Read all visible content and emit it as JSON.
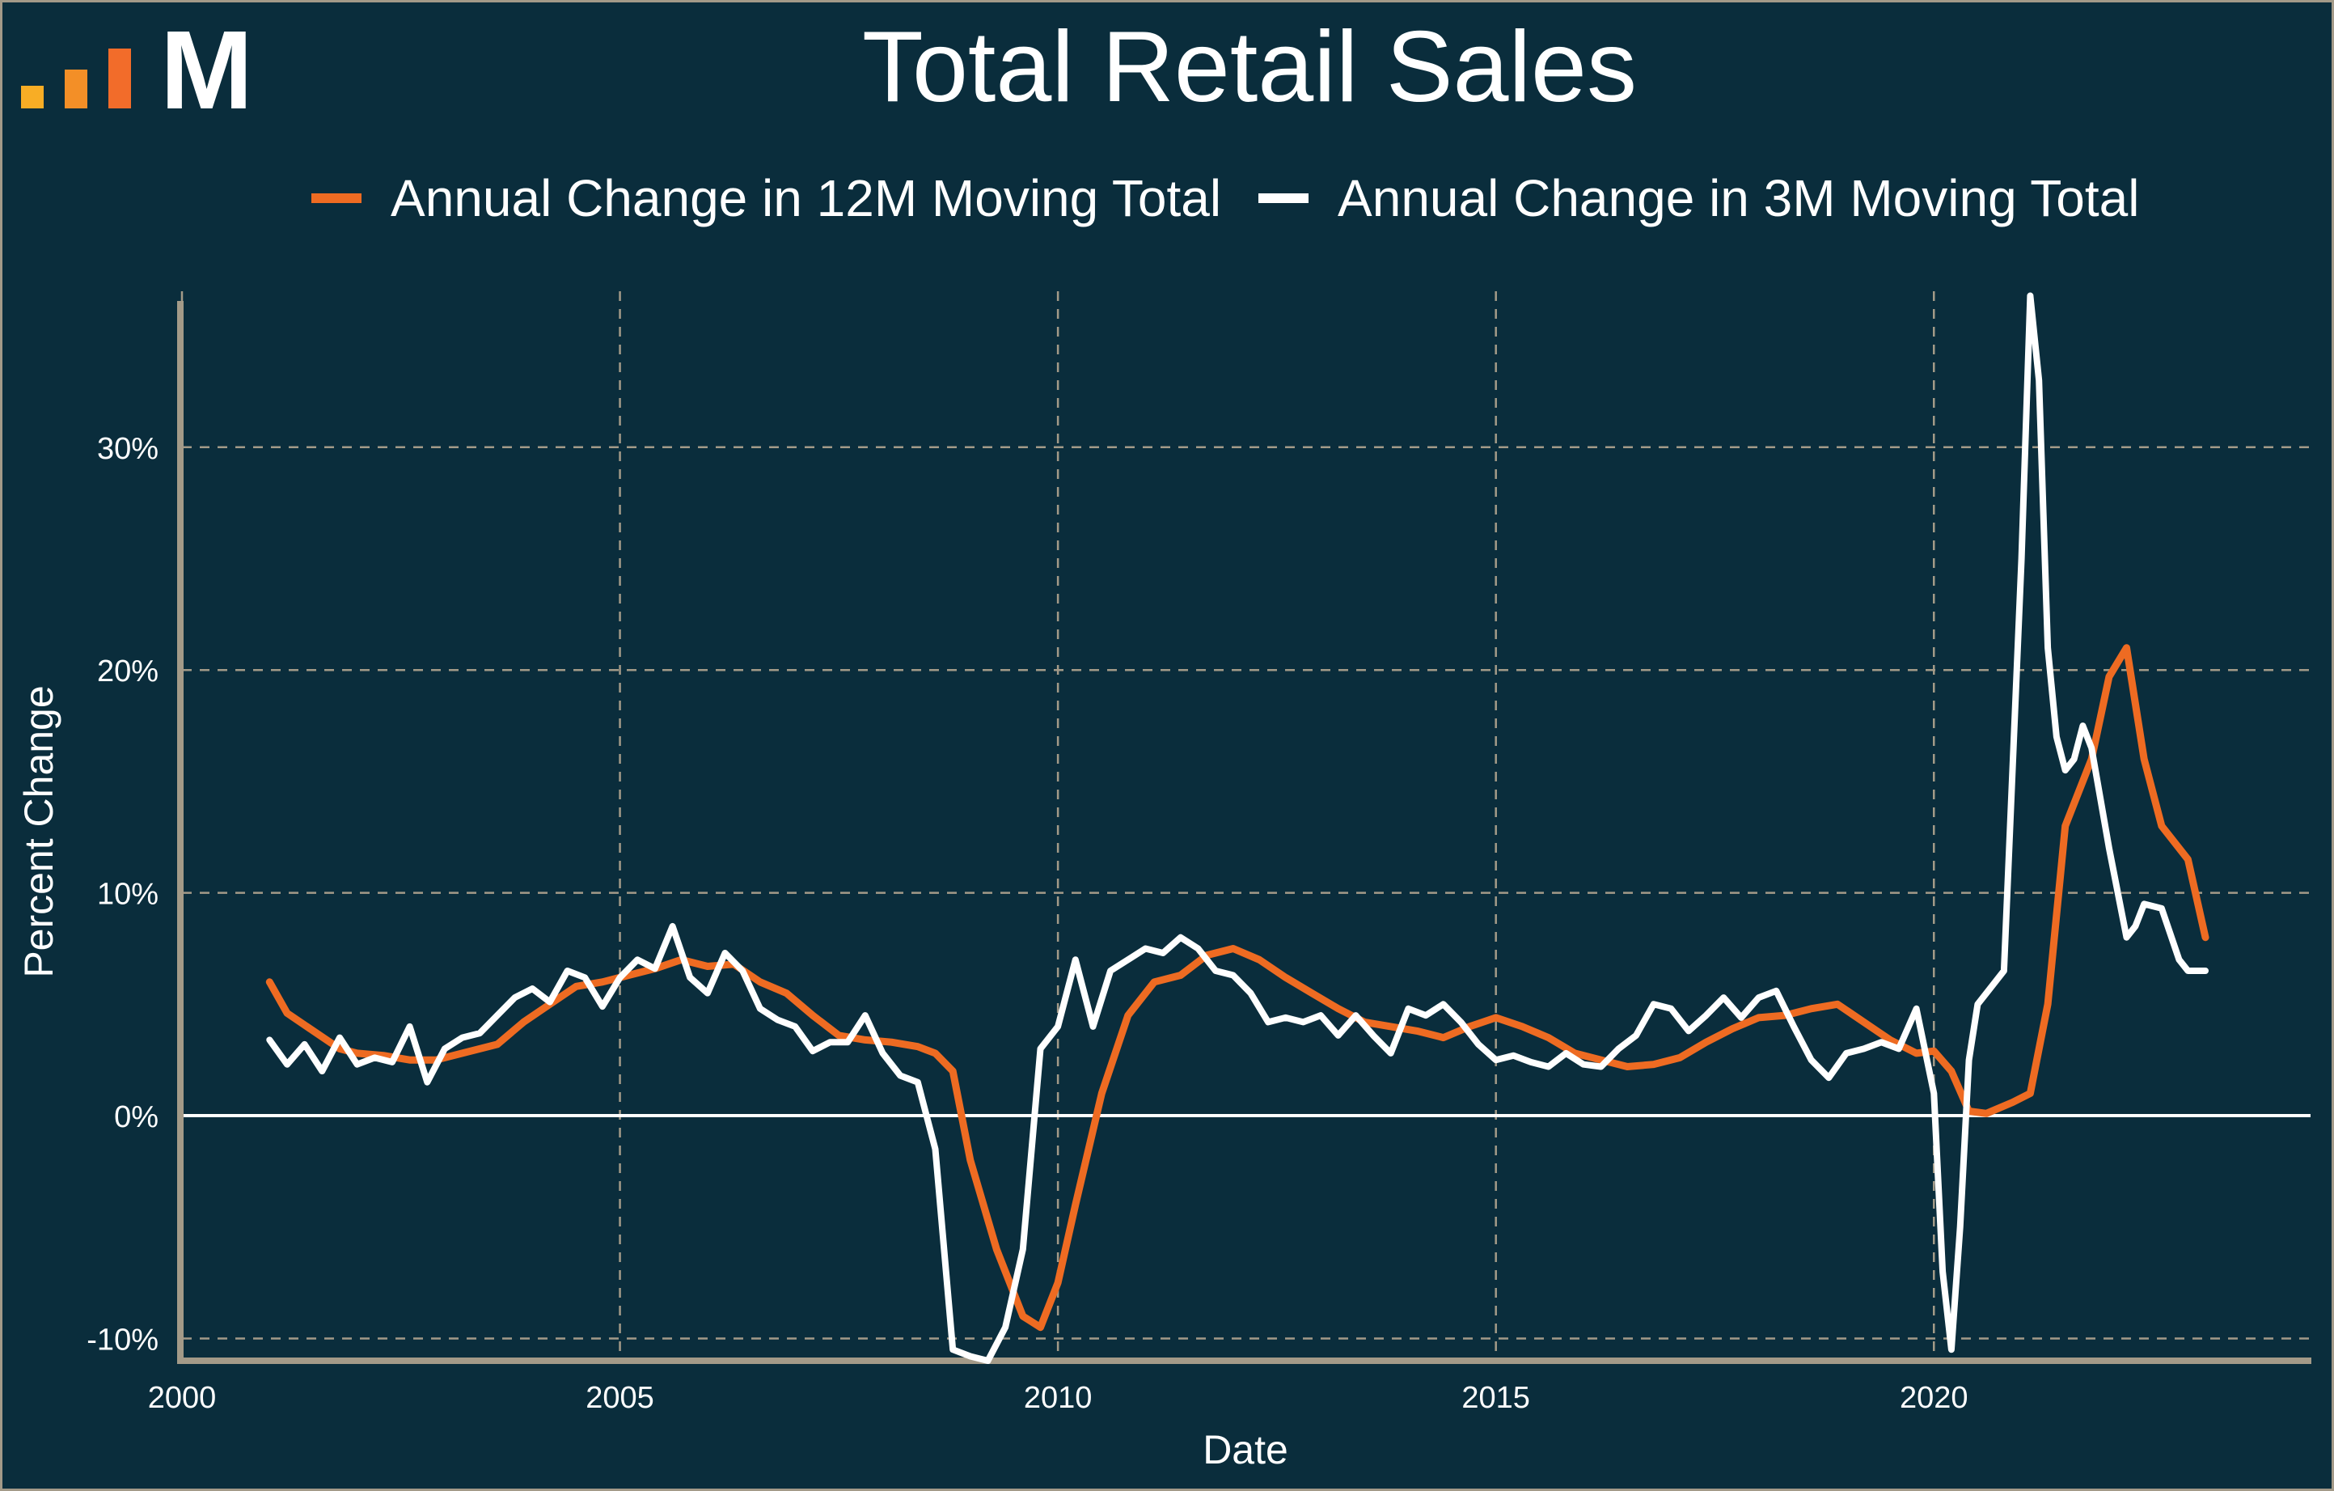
{
  "title": "Total Retail Sales",
  "logo": {
    "letter": "M",
    "bar_colors": [
      "#f8ad25",
      "#f38f27",
      "#f26c2a"
    ]
  },
  "legend": [
    {
      "label": "Annual Change in 12M Moving Total",
      "color": "#ee6b22"
    },
    {
      "label": "Annual Change in 3M Moving Total",
      "color": "#ffffff"
    }
  ],
  "chart_data": {
    "type": "line",
    "title": "Total Retail Sales",
    "xlabel": "Date",
    "ylabel": "Percent Change",
    "xlim": [
      2000,
      2024.3
    ],
    "ylim": [
      -11,
      37
    ],
    "x_ticks": [
      2000,
      2005,
      2010,
      2015,
      2020
    ],
    "x_tick_labels": [
      "2000",
      "2005",
      "2010",
      "2015",
      "2020"
    ],
    "y_ticks": [
      -10,
      0,
      10,
      20,
      30
    ],
    "y_tick_labels": [
      "-10%",
      "0%",
      "10%",
      "20%",
      "30%"
    ],
    "grid": true,
    "legend_position": "top",
    "series": [
      {
        "name": "Annual Change in 12M Moving Total",
        "color": "#ee6b22",
        "x": [
          2001.0,
          2001.2,
          2001.5,
          2001.8,
          2002.0,
          2002.3,
          2002.6,
          2002.9,
          2003.2,
          2003.6,
          2003.9,
          2004.2,
          2004.5,
          2004.8,
          2005.1,
          2005.4,
          2005.7,
          2006.0,
          2006.3,
          2006.6,
          2006.9,
          2007.2,
          2007.5,
          2007.8,
          2008.1,
          2008.4,
          2008.6,
          2008.8,
          2009.0,
          2009.3,
          2009.6,
          2009.8,
          2010.0,
          2010.2,
          2010.5,
          2010.8,
          2011.1,
          2011.4,
          2011.7,
          2012.0,
          2012.3,
          2012.6,
          2012.9,
          2013.2,
          2013.5,
          2013.8,
          2014.1,
          2014.4,
          2014.7,
          2015.0,
          2015.3,
          2015.6,
          2015.9,
          2016.2,
          2016.5,
          2016.8,
          2017.1,
          2017.4,
          2017.7,
          2018.0,
          2018.3,
          2018.6,
          2018.9,
          2019.2,
          2019.5,
          2019.8,
          2020.0,
          2020.2,
          2020.4,
          2020.6,
          2020.9,
          2021.1,
          2021.3,
          2021.5,
          2021.8,
          2022.0,
          2022.2,
          2022.4,
          2022.6,
          2022.9,
          2023.1
        ],
        "y": [
          6.0,
          4.6,
          3.8,
          3.0,
          2.8,
          2.7,
          2.5,
          2.5,
          2.8,
          3.2,
          4.2,
          5.0,
          5.8,
          6.0,
          6.3,
          6.6,
          7.0,
          6.7,
          6.8,
          6.0,
          5.5,
          4.5,
          3.6,
          3.4,
          3.3,
          3.1,
          2.8,
          2.0,
          -2.0,
          -6.0,
          -9.0,
          -9.5,
          -7.5,
          -4.0,
          1.0,
          4.5,
          6.0,
          6.3,
          7.2,
          7.5,
          7.0,
          6.2,
          5.5,
          4.8,
          4.2,
          4.0,
          3.8,
          3.5,
          4.0,
          4.4,
          4.0,
          3.5,
          2.8,
          2.5,
          2.2,
          2.3,
          2.6,
          3.3,
          3.9,
          4.4,
          4.5,
          4.8,
          5.0,
          4.2,
          3.4,
          2.8,
          2.9,
          2.0,
          0.2,
          0.1,
          0.6,
          1.0,
          5.0,
          13.0,
          16.0,
          19.7,
          21.0,
          16.0,
          13.0,
          11.5,
          8.0
        ]
      },
      {
        "name": "Annual Change in 3M Moving Total",
        "color": "#ffffff",
        "x": [
          2001.0,
          2001.2,
          2001.4,
          2001.6,
          2001.8,
          2002.0,
          2002.2,
          2002.4,
          2002.6,
          2002.8,
          2003.0,
          2003.2,
          2003.4,
          2003.6,
          2003.8,
          2004.0,
          2004.2,
          2004.4,
          2004.6,
          2004.8,
          2005.0,
          2005.2,
          2005.4,
          2005.6,
          2005.8,
          2006.0,
          2006.2,
          2006.4,
          2006.6,
          2006.8,
          2007.0,
          2007.2,
          2007.4,
          2007.6,
          2007.8,
          2008.0,
          2008.2,
          2008.4,
          2008.6,
          2008.8,
          2009.0,
          2009.2,
          2009.4,
          2009.6,
          2009.8,
          2010.0,
          2010.2,
          2010.4,
          2010.6,
          2010.8,
          2011.0,
          2011.2,
          2011.4,
          2011.6,
          2011.8,
          2012.0,
          2012.2,
          2012.4,
          2012.6,
          2012.8,
          2013.0,
          2013.2,
          2013.4,
          2013.6,
          2013.8,
          2014.0,
          2014.2,
          2014.4,
          2014.6,
          2014.8,
          2015.0,
          2015.2,
          2015.4,
          2015.6,
          2015.8,
          2016.0,
          2016.2,
          2016.4,
          2016.6,
          2016.8,
          2017.0,
          2017.2,
          2017.4,
          2017.6,
          2017.8,
          2018.0,
          2018.2,
          2018.4,
          2018.6,
          2018.8,
          2019.0,
          2019.2,
          2019.4,
          2019.6,
          2019.8,
          2020.0,
          2020.1,
          2020.2,
          2020.3,
          2020.4,
          2020.5,
          2020.6,
          2020.8,
          2021.0,
          2021.1,
          2021.2,
          2021.3,
          2021.4,
          2021.5,
          2021.6,
          2021.7,
          2021.8,
          2022.0,
          2022.2,
          2022.3,
          2022.4,
          2022.6,
          2022.8,
          2022.9,
          2023.1
        ],
        "y": [
          3.4,
          2.3,
          3.2,
          2.0,
          3.5,
          2.3,
          2.6,
          2.4,
          4.0,
          1.5,
          3.0,
          3.5,
          3.7,
          4.5,
          5.3,
          5.7,
          5.1,
          6.5,
          6.2,
          4.9,
          6.2,
          7.0,
          6.6,
          8.5,
          6.2,
          5.5,
          7.3,
          6.5,
          4.8,
          4.3,
          4.0,
          2.9,
          3.3,
          3.3,
          4.5,
          2.8,
          1.8,
          1.5,
          -1.5,
          -10.5,
          -10.8,
          -11.0,
          -9.5,
          -6.0,
          3.0,
          4.0,
          7.0,
          4.0,
          6.5,
          7.0,
          7.5,
          7.3,
          8.0,
          7.5,
          6.5,
          6.3,
          5.5,
          4.2,
          4.4,
          4.2,
          4.5,
          3.6,
          4.5,
          3.6,
          2.8,
          4.8,
          4.5,
          5.0,
          4.2,
          3.2,
          2.5,
          2.7,
          2.4,
          2.2,
          2.8,
          2.3,
          2.2,
          3.0,
          3.6,
          5.0,
          4.8,
          3.8,
          4.5,
          5.3,
          4.4,
          5.3,
          5.6,
          4.0,
          2.5,
          1.7,
          2.8,
          3.0,
          3.3,
          3.0,
          4.8,
          1.0,
          -7.0,
          -10.5,
          -5.0,
          2.5,
          5.0,
          5.5,
          6.5,
          25.0,
          36.8,
          33.0,
          21.0,
          17.0,
          15.5,
          16.0,
          17.5,
          16.5,
          12.0,
          8.0,
          8.5,
          9.5,
          9.3,
          7.0,
          6.5,
          6.5
        ]
      }
    ]
  }
}
